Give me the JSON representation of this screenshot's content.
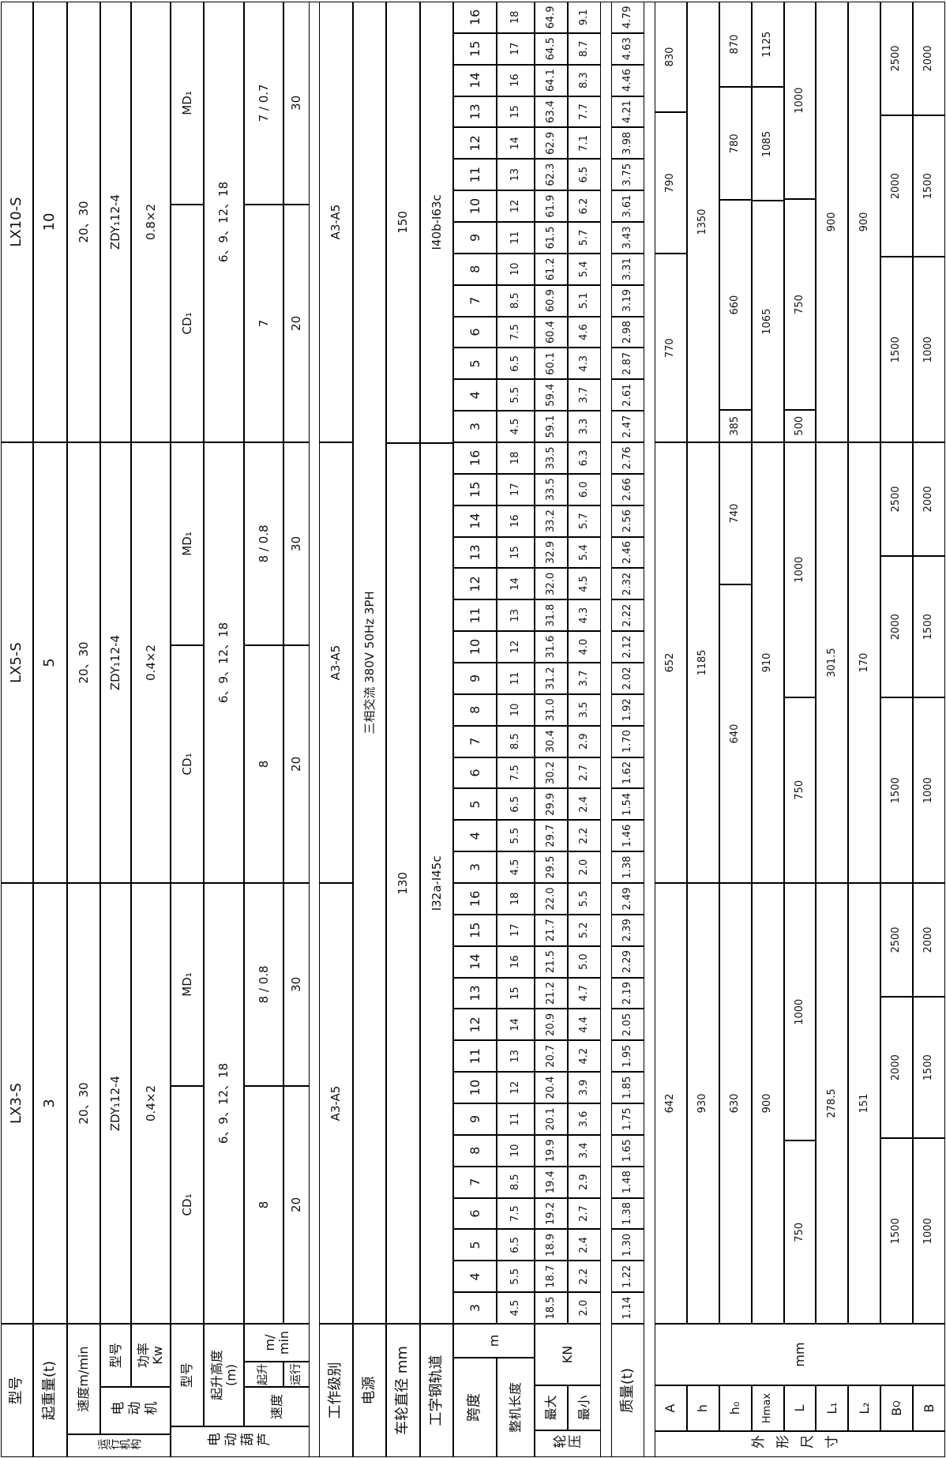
{
  "l": {
    "model": "型号",
    "cap": "起重量(t)",
    "mech": "运行机构",
    "speed_row": "速度m/min",
    "motor": "电动机",
    "motor_model": "型号",
    "motor_power": "功率\nKw",
    "hoist": "电动葫芦",
    "hoist_model": "型号",
    "lift_h": "起升高度\n(m)",
    "speed": "速度",
    "lift": "起升",
    "travel": "运行",
    "mmin": "m/\nmin",
    "duty": "工作级别",
    "power": "电源",
    "wheel": "车轮直径 mm",
    "rail": "工字钢轨道",
    "span": "跨度",
    "m_unit": "m",
    "length": "整机长度",
    "wheel_load": "轮压",
    "max": "最大",
    "min": "最小",
    "kn": "KN",
    "mass": "质量(t)",
    "dims": "外形尺寸",
    "mm_unit": "mm",
    "dA": "A",
    "dh": "h",
    "dh0": "h₀",
    "dHmax": "Hmax",
    "dL": "L",
    "dL1": "L₁",
    "dL2": "L₂",
    "dBq_b": "B",
    "dBq_q": "Q",
    "dB": "B"
  },
  "s": {
    "power_value": "三相交流  380V  50Hz  3PH",
    "wheel_lx3_lx5": "130",
    "wheel_lx10": "150",
    "rail_lx3_lx5": "Ⅰ32a-Ⅰ45c",
    "rail_lx10": "Ⅰ40b-Ⅰ63c",
    "duty": "A3-A5"
  },
  "m": [
    {
      "name": "LX3-S",
      "capacity": "3",
      "travel_speed": "20、30",
      "motor_model": "ZDY₁12-4",
      "motor_power": "0.4×2",
      "cd_model": "CD₁",
      "md_model": "MD₁",
      "lift_height": "6、9、12、18",
      "cd_lift_speed": "8",
      "md_lift_speed": "8 / 0.8",
      "cd_travel": "20",
      "md_travel": "30",
      "spans": [
        "3",
        "4",
        "5",
        "6",
        "7",
        "8",
        "9",
        "10",
        "11",
        "12",
        "13",
        "14",
        "15",
        "16"
      ],
      "lengths": [
        "4.5",
        "5.5",
        "6.5",
        "7.5",
        "8.5",
        "10",
        "11",
        "12",
        "13",
        "14",
        "15",
        "16",
        "17",
        "18"
      ],
      "pmax": [
        "18.5",
        "18.7",
        "18.9",
        "19.2",
        "19.4",
        "19.9",
        "20.1",
        "20.4",
        "20.7",
        "20.9",
        "21.2",
        "21.5",
        "21.7",
        "22.0"
      ],
      "pmin": [
        "2.0",
        "2.2",
        "2.4",
        "2.7",
        "2.9",
        "3.4",
        "3.6",
        "3.9",
        "4.2",
        "4.4",
        "4.7",
        "5.0",
        "5.2",
        "5.5"
      ],
      "mass": [
        "1.14",
        "1.22",
        "1.30",
        "1.38",
        "1.48",
        "1.65",
        "1.75",
        "1.85",
        "1.95",
        "2.05",
        "2.19",
        "2.29",
        "2.39",
        "2.49"
      ],
      "dims": {
        "A": [
          {
            "v": "642",
            "f": 14
          }
        ],
        "h": [
          {
            "v": "930",
            "f": 14
          }
        ],
        "h0": [
          {
            "v": "630",
            "f": 14
          }
        ],
        "Hmax": [
          {
            "v": "900",
            "f": 14
          }
        ],
        "L": [
          {
            "v": "750",
            "f": 5.8
          },
          {
            "v": "1000",
            "f": 8.2
          }
        ],
        "L1": [
          {
            "v": "278.5",
            "f": 14
          }
        ],
        "L2": [
          {
            "v": "151",
            "f": 14
          }
        ],
        "BQ": [
          {
            "v": "1500",
            "f": 5.9
          },
          {
            "v": "2000",
            "f": 4.5
          },
          {
            "v": "2500",
            "f": 3.6
          }
        ],
        "B": [
          {
            "v": "1000",
            "f": 5.9
          },
          {
            "v": "1500",
            "f": 4.5
          },
          {
            "v": "2000",
            "f": 3.6
          }
        ]
      }
    },
    {
      "name": "LX5-S",
      "capacity": "5",
      "travel_speed": "20、30",
      "motor_model": "ZDY₁12-4",
      "motor_power": "0.4×2",
      "cd_model": "CD₁",
      "md_model": "MD₁",
      "lift_height": "6、9、12、18",
      "cd_lift_speed": "8",
      "md_lift_speed": "8 / 0.8",
      "cd_travel": "20",
      "md_travel": "30",
      "spans": [
        "3",
        "4",
        "5",
        "6",
        "7",
        "8",
        "9",
        "10",
        "11",
        "12",
        "13",
        "14",
        "15",
        "16"
      ],
      "lengths": [
        "4.5",
        "5.5",
        "6.5",
        "7.5",
        "8.5",
        "10",
        "11",
        "12",
        "13",
        "14",
        "15",
        "16",
        "17",
        "18"
      ],
      "pmax": [
        "29.5",
        "29.7",
        "29.9",
        "30.2",
        "30.4",
        "31.0",
        "31.2",
        "31.6",
        "31.8",
        "32.0",
        "32.9",
        "33.2",
        "33.5",
        "33.5"
      ],
      "pmin": [
        "2.0",
        "2.2",
        "2.4",
        "2.7",
        "2.9",
        "3.5",
        "3.7",
        "4.0",
        "4.3",
        "4.5",
        "5.4",
        "5.7",
        "6.0",
        "6.3"
      ],
      "mass": [
        "1.38",
        "1.46",
        "1.54",
        "1.62",
        "1.70",
        "1.92",
        "2.02",
        "2.12",
        "2.22",
        "2.32",
        "2.46",
        "2.56",
        "2.66",
        "2.76"
      ],
      "dims": {
        "A": [
          {
            "v": "652",
            "f": 14
          }
        ],
        "h": [
          {
            "v": "1185",
            "f": 14
          }
        ],
        "h0": [
          {
            "v": "640",
            "f": 9.5
          },
          {
            "v": "740",
            "f": 4.5
          }
        ],
        "Hmax": [
          {
            "v": "910",
            "f": 14
          }
        ],
        "L": [
          {
            "v": "750",
            "f": 5.9
          },
          {
            "v": "1000",
            "f": 8.1
          }
        ],
        "L1": [
          {
            "v": "301.5",
            "f": 14
          }
        ],
        "L2": [
          {
            "v": "170",
            "f": 14
          }
        ],
        "BQ": [
          {
            "v": "1500",
            "f": 5.9
          },
          {
            "v": "2000",
            "f": 4.5
          },
          {
            "v": "2500",
            "f": 3.6
          }
        ],
        "B": [
          {
            "v": "1000",
            "f": 5.9
          },
          {
            "v": "1500",
            "f": 4.5
          },
          {
            "v": "2000",
            "f": 3.6
          }
        ]
      }
    },
    {
      "name": "LX10-S",
      "capacity": "10",
      "travel_speed": "20、30",
      "motor_model": "ZDY₁12-4",
      "motor_power": "0.8×2",
      "cd_model": "CD₁",
      "md_model": "MD₁",
      "lift_height": "6、9、12、18",
      "cd_lift_speed": "7",
      "md_lift_speed": "7 / 0.7",
      "cd_travel": "20",
      "md_travel": "30",
      "spans": [
        "3",
        "4",
        "5",
        "6",
        "7",
        "8",
        "9",
        "10",
        "11",
        "12",
        "13",
        "14",
        "15",
        "16"
      ],
      "lengths": [
        "4.5",
        "5.5",
        "6.5",
        "7.5",
        "8.5",
        "10",
        "11",
        "12",
        "13",
        "14",
        "15",
        "16",
        "17",
        "18"
      ],
      "pmax": [
        "59.1",
        "59.4",
        "60.1",
        "60.4",
        "60.9",
        "61.2",
        "61.5",
        "61.9",
        "62.3",
        "62.9",
        "63.4",
        "64.1",
        "64.5",
        "64.9"
      ],
      "pmin": [
        "3.3",
        "3.7",
        "4.3",
        "4.6",
        "5.1",
        "5.4",
        "5.7",
        "6.2",
        "6.5",
        "7.1",
        "7.7",
        "8.3",
        "8.7",
        "9.1"
      ],
      "mass": [
        "2.47",
        "2.61",
        "2.87",
        "2.98",
        "3.19",
        "3.31",
        "3.43",
        "3.61",
        "3.75",
        "3.98",
        "4.21",
        "4.46",
        "4.63",
        "4.79"
      ],
      "dims": {
        "A": [
          {
            "v": "770",
            "f": 6
          },
          {
            "v": "790",
            "f": 4.5
          },
          {
            "v": "830",
            "f": 3.5
          }
        ],
        "h": [
          {
            "v": "1350",
            "f": 14
          }
        ],
        "h0": [
          {
            "v": "385",
            "f": 1
          },
          {
            "v": "660",
            "f": 6.7
          },
          {
            "v": "780",
            "f": 3.6
          },
          {
            "v": "870",
            "f": 2.7
          }
        ],
        "Hmax": [
          {
            "v": "1065",
            "f": 7.7
          },
          {
            "v": "1085",
            "f": 3.6
          },
          {
            "v": "1125",
            "f": 2.7
          }
        ],
        "L": [
          {
            "v": "500",
            "f": 1
          },
          {
            "v": "750",
            "f": 6.7
          },
          {
            "v": "1000",
            "f": 6.3
          }
        ],
        "L1": [
          {
            "v": "900",
            "f": 14
          }
        ],
        "L2": [
          {
            "v": "900",
            "f": 14
          }
        ],
        "BQ": [
          {
            "v": "1500",
            "f": 5.9
          },
          {
            "v": "2000",
            "f": 4.5
          },
          {
            "v": "2500",
            "f": 3.6
          }
        ],
        "B": [
          {
            "v": "1000",
            "f": 5.9
          },
          {
            "v": "1500",
            "f": 4.5
          },
          {
            "v": "2000",
            "f": 3.6
          }
        ]
      }
    }
  ]
}
